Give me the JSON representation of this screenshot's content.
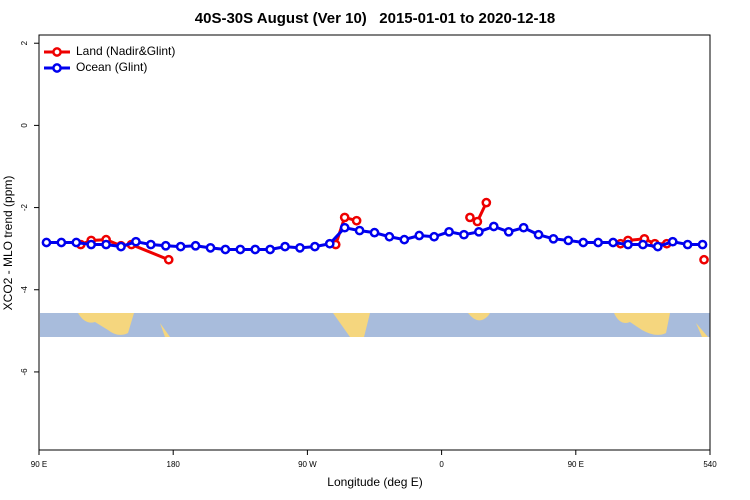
{
  "chart_data": {
    "type": "line",
    "title": "40S-30S August (Ver 10)   2015-01-01 to 2020-12-18",
    "x_label": "Longitude (deg E)",
    "y_label": "XCO2 - MLO trend (ppm)",
    "xlim": [
      90,
      540
    ],
    "xticks": [
      {
        "value": 90,
        "label": "90 E"
      },
      180,
      {
        "value": 270,
        "label": "90 W"
      },
      {
        "value": 360,
        "label": "0"
      },
      {
        "value": 450,
        "label": "90 E"
      },
      540
    ],
    "ylim": [
      -7.9,
      2.2
    ],
    "yticks": [
      2,
      0,
      -2,
      -4,
      -6
    ],
    "legend": "top-left",
    "series": [
      {
        "name": "Land (Nadir&Glint)",
        "color": "#ee0000",
        "x": [
          118,
          125,
          135,
          145,
          152,
          177,
          null,
          289,
          295,
          303,
          null,
          379,
          384,
          390,
          null,
          480,
          485,
          496,
          503,
          511,
          null,
          536
        ],
        "values": [
          -2.9,
          -2.8,
          -2.78,
          -2.93,
          -2.9,
          -3.27,
          null,
          -2.9,
          -2.24,
          -2.32,
          null,
          -2.24,
          -2.34,
          -1.88,
          null,
          -2.88,
          -2.8,
          -2.76,
          -2.88,
          -2.88,
          null,
          -3.27
        ]
      },
      {
        "name": "Ocean (Glint)",
        "color": "#0000ee",
        "x": [
          95,
          105,
          115,
          125,
          135,
          145,
          155,
          165,
          175,
          185,
          195,
          205,
          215,
          225,
          235,
          245,
          255,
          265,
          275,
          285,
          295,
          305,
          315,
          325,
          335,
          345,
          355,
          365,
          375,
          385,
          395,
          405,
          415,
          425,
          435,
          445,
          455,
          465,
          475,
          485,
          495,
          505,
          515,
          525,
          535
        ],
        "values": [
          -2.85,
          -2.85,
          -2.85,
          -2.9,
          -2.9,
          -2.95,
          -2.83,
          -2.9,
          -2.93,
          -2.95,
          -2.93,
          -2.98,
          -3.02,
          -3.02,
          -3.02,
          -3.02,
          -2.95,
          -2.98,
          -2.95,
          -2.88,
          -2.49,
          -2.56,
          -2.61,
          -2.71,
          -2.78,
          -2.68,
          -2.71,
          -2.59,
          -2.66,
          -2.59,
          -2.46,
          -2.59,
          -2.49,
          -2.66,
          -2.76,
          -2.8,
          -2.85,
          -2.85,
          -2.85,
          -2.9,
          -2.9,
          -2.95,
          -2.83,
          -2.9,
          -2.9
        ]
      }
    ]
  }
}
